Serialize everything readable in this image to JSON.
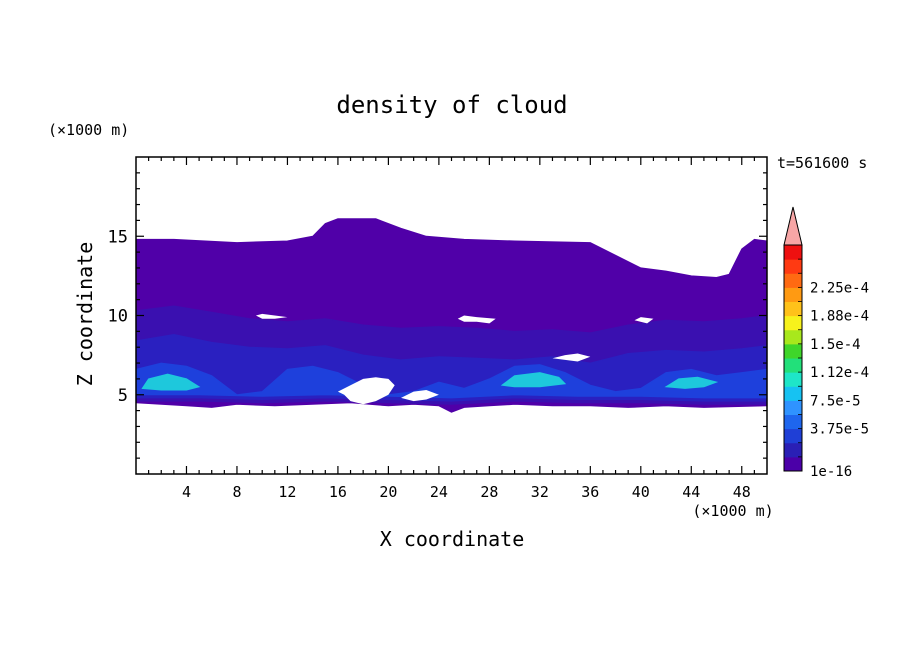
{
  "chart_data": {
    "type": "heatmap",
    "title": "density of cloud",
    "xlabel": "X coordinate",
    "ylabel": "Z coordinate",
    "x_unit": "(×1000 m)",
    "y_unit": "(×1000 m)",
    "time_label": "t=561600 s",
    "xlim": [
      0,
      50
    ],
    "ylim": [
      0,
      20
    ],
    "x_ticks": [
      4,
      8,
      12,
      16,
      20,
      24,
      28,
      32,
      36,
      40,
      44,
      48
    ],
    "y_ticks": [
      5,
      10,
      15
    ],
    "colorbar": {
      "labels": [
        "1e-16",
        "3.75e-5",
        "7.5e-5",
        "1.12e-4",
        "1.5e-4",
        "1.88e-4",
        "2.25e-4"
      ],
      "colors": [
        "#4b00a8",
        "#2a1fb5",
        "#1f3fd6",
        "#1e66ee",
        "#2f93ff",
        "#16c2f2",
        "#1ee6c8",
        "#22e07a",
        "#3fd62a",
        "#a8e81c",
        "#f7f21c",
        "#ffc21a",
        "#ff9a12",
        "#ff6a12",
        "#ff3a12",
        "#ee1010"
      ],
      "extend_max_color": "#f7a6a6"
    },
    "regions": [
      {
        "level": "1e-16",
        "color": "#5000a8",
        "polygon": [
          [
            0,
            4.5
          ],
          [
            0,
            14.8
          ],
          [
            3,
            14.8
          ],
          [
            8,
            14.6
          ],
          [
            12,
            14.7
          ],
          [
            14,
            15.0
          ],
          [
            15,
            15.8
          ],
          [
            16,
            16.1
          ],
          [
            19,
            16.1
          ],
          [
            21,
            15.5
          ],
          [
            23,
            15.0
          ],
          [
            26,
            14.8
          ],
          [
            30,
            14.7
          ],
          [
            36,
            14.6
          ],
          [
            38,
            13.8
          ],
          [
            40,
            13.0
          ],
          [
            42,
            12.8
          ],
          [
            44,
            12.5
          ],
          [
            46,
            12.4
          ],
          [
            47,
            12.6
          ],
          [
            48,
            14.2
          ],
          [
            49,
            14.8
          ],
          [
            50,
            14.7
          ],
          [
            50,
            4.3
          ],
          [
            45,
            4.2
          ],
          [
            42,
            4.3
          ],
          [
            39,
            4.2
          ],
          [
            36,
            4.3
          ],
          [
            33,
            4.3
          ],
          [
            30,
            4.4
          ],
          [
            28,
            4.3
          ],
          [
            26,
            4.2
          ],
          [
            25,
            3.9
          ],
          [
            24,
            4.3
          ],
          [
            22,
            4.4
          ],
          [
            20,
            4.3
          ],
          [
            17,
            4.5
          ],
          [
            14,
            4.4
          ],
          [
            11,
            4.3
          ],
          [
            8,
            4.4
          ],
          [
            6,
            4.2
          ],
          [
            4,
            4.3
          ],
          [
            2,
            4.4
          ]
        ]
      },
      {
        "level": "1e-16",
        "color": "#3a10b0",
        "polygon": [
          [
            0,
            4.6
          ],
          [
            0,
            10.3
          ],
          [
            3,
            10.6
          ],
          [
            6,
            10.2
          ],
          [
            9,
            9.8
          ],
          [
            12,
            9.6
          ],
          [
            15,
            9.8
          ],
          [
            18,
            9.4
          ],
          [
            21,
            9.2
          ],
          [
            24,
            9.3
          ],
          [
            27,
            9.2
          ],
          [
            30,
            9.0
          ],
          [
            33,
            9.1
          ],
          [
            36,
            8.9
          ],
          [
            39,
            9.4
          ],
          [
            42,
            9.7
          ],
          [
            45,
            9.6
          ],
          [
            48,
            9.8
          ],
          [
            50,
            10.0
          ],
          [
            50,
            4.4
          ],
          [
            45,
            4.4
          ],
          [
            40,
            4.5
          ],
          [
            35,
            4.5
          ],
          [
            30,
            4.6
          ],
          [
            25,
            4.4
          ],
          [
            20,
            4.5
          ],
          [
            15,
            4.6
          ],
          [
            10,
            4.5
          ],
          [
            5,
            4.6
          ]
        ]
      },
      {
        "level": "3.75e-5",
        "color": "#2a20c0",
        "polygon": [
          [
            0,
            4.8
          ],
          [
            0,
            8.4
          ],
          [
            3,
            8.8
          ],
          [
            6,
            8.3
          ],
          [
            9,
            8.0
          ],
          [
            12,
            7.9
          ],
          [
            15,
            8.1
          ],
          [
            18,
            7.5
          ],
          [
            21,
            7.2
          ],
          [
            24,
            7.4
          ],
          [
            27,
            7.3
          ],
          [
            30,
            7.2
          ],
          [
            33,
            7.4
          ],
          [
            36,
            7.0
          ],
          [
            39,
            7.6
          ],
          [
            42,
            7.8
          ],
          [
            45,
            7.7
          ],
          [
            48,
            7.9
          ],
          [
            50,
            8.1
          ],
          [
            50,
            4.6
          ],
          [
            45,
            4.6
          ],
          [
            40,
            4.7
          ],
          [
            35,
            4.7
          ],
          [
            30,
            4.8
          ],
          [
            25,
            4.6
          ],
          [
            20,
            4.7
          ],
          [
            15,
            4.8
          ],
          [
            10,
            4.7
          ],
          [
            5,
            4.8
          ]
        ]
      },
      {
        "level": "7.5e-5",
        "color": "#1e40dc",
        "polygon": [
          [
            0,
            5.0
          ],
          [
            0,
            6.6
          ],
          [
            2,
            7.0
          ],
          [
            4,
            6.8
          ],
          [
            6,
            6.2
          ],
          [
            8,
            5.0
          ],
          [
            10,
            5.2
          ],
          [
            12,
            6.6
          ],
          [
            14,
            6.8
          ],
          [
            16,
            6.4
          ],
          [
            18,
            5.6
          ],
          [
            20,
            5.0
          ],
          [
            22,
            5.2
          ],
          [
            24,
            5.8
          ],
          [
            26,
            5.4
          ],
          [
            28,
            6.0
          ],
          [
            30,
            6.8
          ],
          [
            32,
            6.9
          ],
          [
            34,
            6.4
          ],
          [
            36,
            5.6
          ],
          [
            38,
            5.2
          ],
          [
            40,
            5.4
          ],
          [
            42,
            6.4
          ],
          [
            44,
            6.6
          ],
          [
            46,
            6.2
          ],
          [
            48,
            6.4
          ],
          [
            50,
            6.6
          ],
          [
            50,
            4.8
          ],
          [
            45,
            4.8
          ],
          [
            40,
            4.9
          ],
          [
            35,
            4.9
          ],
          [
            30,
            5.0
          ],
          [
            25,
            4.8
          ],
          [
            20,
            4.9
          ],
          [
            15,
            5.0
          ],
          [
            10,
            4.9
          ],
          [
            5,
            5.0
          ]
        ]
      },
      {
        "level": "1.12e-4",
        "color": "#1ec8dc",
        "polygon": [
          [
            0.5,
            5.4
          ],
          [
            1,
            6.0
          ],
          [
            2.5,
            6.3
          ],
          [
            4,
            6.0
          ],
          [
            5,
            5.5
          ],
          [
            4,
            5.3
          ],
          [
            2,
            5.3
          ]
        ]
      },
      {
        "level": "1.12e-4",
        "color": "#1ec8dc",
        "polygon": [
          [
            29,
            5.6
          ],
          [
            30,
            6.2
          ],
          [
            32,
            6.4
          ],
          [
            33.5,
            6.1
          ],
          [
            34,
            5.7
          ],
          [
            32,
            5.5
          ],
          [
            30,
            5.5
          ]
        ]
      },
      {
        "level": "1.12e-4",
        "color": "#1ec8dc",
        "polygon": [
          [
            42,
            5.5
          ],
          [
            43,
            6.0
          ],
          [
            44.5,
            6.1
          ],
          [
            46,
            5.8
          ],
          [
            45,
            5.5
          ],
          [
            43.5,
            5.4
          ]
        ]
      }
    ],
    "gaps": [
      {
        "polygon": [
          [
            9.5,
            10.0
          ],
          [
            10,
            10.1
          ],
          [
            11,
            10.0
          ],
          [
            12,
            9.9
          ],
          [
            11,
            9.8
          ],
          [
            10,
            9.8
          ]
        ]
      },
      {
        "polygon": [
          [
            25.5,
            9.8
          ],
          [
            26,
            10.0
          ],
          [
            27,
            9.9
          ],
          [
            28.5,
            9.8
          ],
          [
            28,
            9.5
          ],
          [
            27,
            9.6
          ],
          [
            26,
            9.6
          ]
        ]
      },
      {
        "polygon": [
          [
            33,
            7.3
          ],
          [
            34,
            7.5
          ],
          [
            35,
            7.6
          ],
          [
            36,
            7.4
          ],
          [
            35,
            7.1
          ],
          [
            34,
            7.2
          ]
        ]
      },
      {
        "polygon": [
          [
            16,
            5.2
          ],
          [
            17,
            5.6
          ],
          [
            18,
            6.0
          ],
          [
            19,
            6.1
          ],
          [
            20,
            6.0
          ],
          [
            20.5,
            5.6
          ],
          [
            20,
            5.0
          ],
          [
            19,
            4.6
          ],
          [
            18,
            4.4
          ],
          [
            17,
            4.6
          ],
          [
            16.5,
            5.0
          ]
        ]
      },
      {
        "polygon": [
          [
            21,
            4.8
          ],
          [
            22,
            5.2
          ],
          [
            23,
            5.3
          ],
          [
            24,
            5.0
          ],
          [
            23,
            4.7
          ],
          [
            22,
            4.6
          ]
        ]
      },
      {
        "polygon": [
          [
            39.5,
            9.7
          ],
          [
            40,
            9.9
          ],
          [
            41,
            9.8
          ],
          [
            40.5,
            9.5
          ]
        ]
      }
    ]
  }
}
